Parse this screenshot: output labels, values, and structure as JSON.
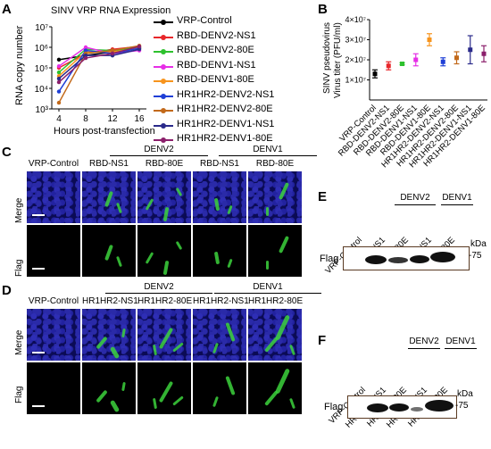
{
  "panels": {
    "A": "A",
    "B": "B",
    "C": "C",
    "D": "D",
    "E": "E",
    "F": "F"
  },
  "panelA": {
    "title": "SINV VRP RNA Expression",
    "ylabel": "RNA copy number",
    "xlabel": "Hours post-transfection",
    "yticks": [
      "10⁷",
      "10⁶",
      "10⁵",
      "10⁴",
      "10³"
    ],
    "xticks": [
      "4",
      "8",
      "12",
      "16"
    ],
    "legend": [
      {
        "label": "VRP-Control",
        "color": "#000000"
      },
      {
        "label": "RBD-DENV2-NS1",
        "color": "#e8262a"
      },
      {
        "label": "RBD-DENV2-80E",
        "color": "#2ec12e"
      },
      {
        "label": "RBD-DENV1-NS1",
        "color": "#e62ee6"
      },
      {
        "label": "RBD-DENV1-80E",
        "color": "#f7941d"
      },
      {
        "label": "HR1HR2-DENV2-NS1",
        "color": "#1f3fd6"
      },
      {
        "label": "HR1HR2-DENV2-80E",
        "color": "#c2691a"
      },
      {
        "label": "HR1HR2-DENV1-NS1",
        "color": "#2a2a8a"
      },
      {
        "label": "HR1HR2-DENV1-80E",
        "color": "#8b1f6b"
      }
    ]
  },
  "panelB": {
    "ylabel1": "SINV pseudovirus",
    "ylabel2": "Virus titer (PFU/ml)",
    "yticks": [
      "4×10⁷",
      "3×10⁷",
      "2×10⁷",
      "1×10⁷"
    ],
    "categories": [
      "VRP-Control",
      "RBD-DENV2-NS1",
      "RBD-DENV2-80E",
      "RBD-DENV1-NS1",
      "RBD-DENV1-80E",
      "HR1HR2-DENV2-NS1",
      "HR1HR2-DENV2-80E",
      "HR1HR2-DENV1-NS1",
      "HR1HR2-DENV1-80E"
    ]
  },
  "panelC": {
    "group1": "DENV2",
    "group2": "DENV1",
    "cols": [
      "VRP-Control",
      "RBD-NS1",
      "RBD-80E",
      "RBD-NS1",
      "RBD-80E"
    ],
    "rows": [
      "Merge",
      "Flag"
    ]
  },
  "panelD": {
    "group1": "DENV2",
    "group2": "DENV1",
    "cols": [
      "VRP-Control",
      "HR1HR2-NS1",
      "HR1HR2-80E",
      "HR1HR2-NS1",
      "HR1HR2-80E"
    ],
    "rows": [
      "Merge",
      "Flag"
    ]
  },
  "panelE": {
    "group1": "DENV2",
    "group2": "DENV1",
    "lanes": [
      "VRP-Control",
      "RBD-NS1",
      "RBD-80E",
      "RBD-NS1",
      "RBD-80E"
    ],
    "row": "Flag",
    "kda": "kDa",
    "marker": "-75"
  },
  "panelF": {
    "group1": "DENV2",
    "group2": "DENV1",
    "lanes": [
      "VRP-Control",
      "HR1HR2-NS1",
      "HR1HR2-80E",
      "HR1HR2-NS1",
      "HR1HR2-80E"
    ],
    "row": "Flag",
    "kda": "kDa",
    "marker": "-75"
  },
  "chart_data": [
    {
      "type": "line",
      "title": "SINV VRP RNA Expression",
      "xlabel": "Hours post-transfection",
      "ylabel": "RNA copy number",
      "x": [
        4,
        8,
        12,
        16
      ],
      "yscale": "log",
      "ylim": [
        1000,
        10000000
      ],
      "series": [
        {
          "name": "VRP-Control",
          "values": [
            250000,
            400000,
            600000,
            900000
          ]
        },
        {
          "name": "RBD-DENV2-NS1",
          "values": [
            100000,
            500000,
            800000,
            1100000
          ]
        },
        {
          "name": "RBD-DENV2-80E",
          "values": [
            60000,
            800000,
            700000,
            1000000
          ]
        },
        {
          "name": "RBD-DENV1-NS1",
          "values": [
            120000,
            1000000,
            500000,
            700000
          ]
        },
        {
          "name": "RBD-DENV1-80E",
          "values": [
            40000,
            600000,
            600000,
            900000
          ]
        },
        {
          "name": "HR1HR2-DENV2-NS1",
          "values": [
            7000,
            700000,
            500000,
            900000
          ]
        },
        {
          "name": "HR1HR2-DENV2-80E",
          "values": [
            2000,
            500000,
            700000,
            1200000
          ]
        },
        {
          "name": "HR1HR2-DENV1-NS1",
          "values": [
            30000,
            400000,
            400000,
            800000
          ]
        },
        {
          "name": "HR1HR2-DENV1-80E",
          "values": [
            20000,
            300000,
            500000,
            1100000
          ]
        }
      ]
    },
    {
      "type": "scatter",
      "ylabel": "SINV pseudovirus Virus titer (PFU/ml)",
      "ylim": [
        0,
        40000000
      ],
      "categories": [
        "VRP-Control",
        "RBD-DENV2-NS1",
        "RBD-DENV2-80E",
        "RBD-DENV1-NS1",
        "RBD-DENV1-80E",
        "HR1HR2-DENV2-NS1",
        "HR1HR2-DENV2-80E",
        "HR1HR2-DENV1-NS1",
        "HR1HR2-DENV1-80E"
      ],
      "values": [
        13000000,
        17000000,
        18000000,
        20000000,
        30000000,
        19000000,
        21000000,
        25000000,
        23000000
      ],
      "errors": [
        2000000,
        2000000,
        500000,
        3000000,
        3000000,
        2000000,
        3000000,
        7000000,
        4000000
      ],
      "colors": [
        "#000000",
        "#e8262a",
        "#2ec12e",
        "#e62ee6",
        "#f7941d",
        "#1f3fd6",
        "#c2691a",
        "#2a2a8a",
        "#8b1f6b"
      ]
    }
  ]
}
